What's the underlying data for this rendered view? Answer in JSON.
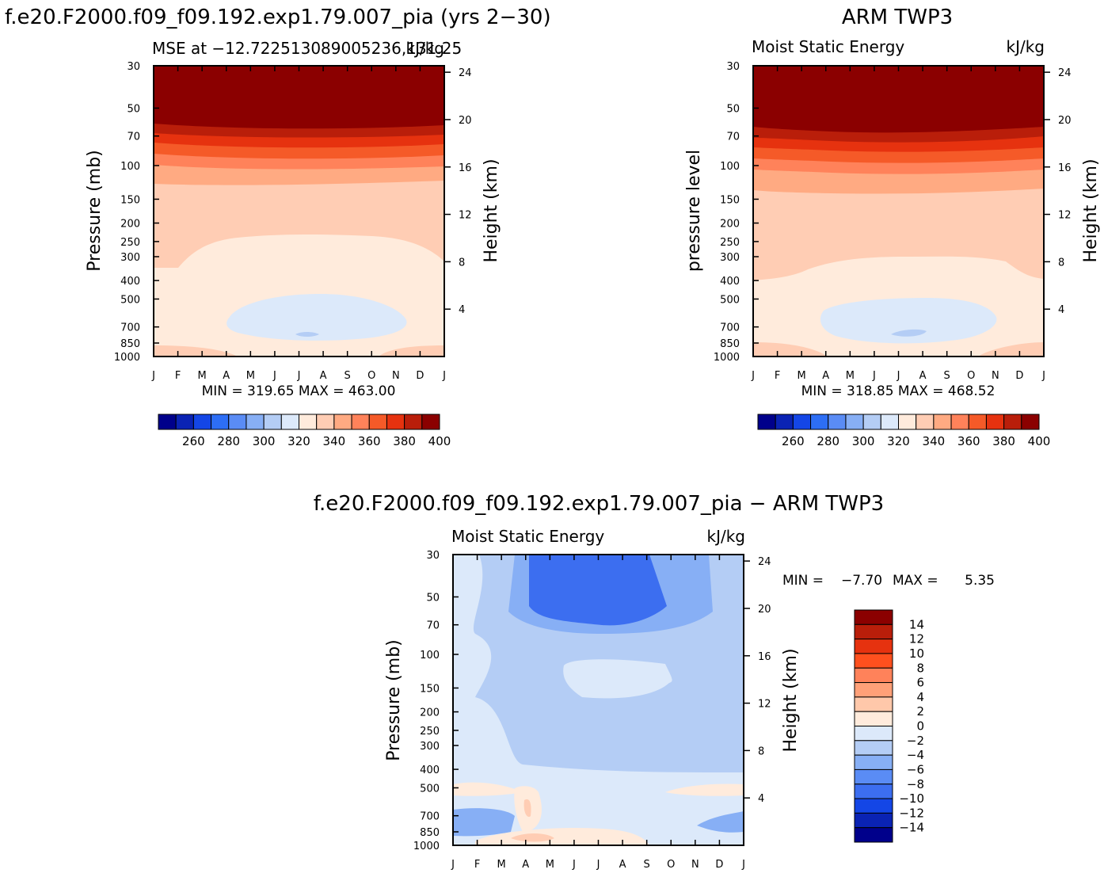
{
  "colors": {
    "mse_bar": [
      "#00008b",
      "#0a23b4",
      "#1446e6",
      "#2d6ef5",
      "#5a8cf5",
      "#87aff5",
      "#b4cdf5",
      "#dce9fa",
      "#ffebdc",
      "#ffcdb4",
      "#ffaa82",
      "#ff825a",
      "#f55a28",
      "#e6320f",
      "#b91e0a",
      "#8b0000"
    ],
    "diff_bar": [
      "#8b0000",
      "#b91e0a",
      "#e6320f",
      "#ff501e",
      "#ff825a",
      "#ffa078",
      "#ffc8aa",
      "#ffebdc",
      "#dce9fa",
      "#b4cdf5",
      "#87aff5",
      "#5a8cf5",
      "#3c6ef0",
      "#1446e6",
      "#0a23b4",
      "#00008b"
    ]
  },
  "chart_data": [
    {
      "id": "model",
      "type": "heatmap",
      "header_left": "f.e20.F2000.f09_f09.192.exp1.79.007_pia (yrs 2−30)",
      "title_left": "MSE at −12.722513089005236,131.25",
      "title_right": "kJ/kg",
      "ylabel": "Pressure (mb)",
      "y2label": "Height (km)",
      "months": [
        "J",
        "F",
        "M",
        "A",
        "M",
        "J",
        "J",
        "A",
        "S",
        "O",
        "N",
        "D",
        "J"
      ],
      "pressure_ticks": [
        "30",
        "50",
        "70",
        "100",
        "150",
        "200",
        "250",
        "300",
        "400",
        "500",
        "700",
        "850",
        "1000"
      ],
      "height_ticks": [
        "24",
        "20",
        "16",
        "12",
        "8",
        "4"
      ],
      "stats": "MIN = 319.65 MAX = 463.00",
      "min": 319.65,
      "max": 463.0,
      "colorbar_labels": [
        "260",
        "280",
        "300",
        "320",
        "340",
        "360",
        "380",
        "400"
      ],
      "levels": [
        250,
        260,
        270,
        280,
        290,
        300,
        310,
        320,
        330,
        340,
        350,
        360,
        370,
        380,
        390,
        400
      ]
    },
    {
      "id": "obs",
      "type": "heatmap",
      "header_right": "ARM TWP3",
      "title_left": "Moist Static Energy",
      "title_right": "kJ/kg",
      "ylabel": "pressure level",
      "y2label": "Height (km)",
      "months": [
        "J",
        "F",
        "M",
        "A",
        "M",
        "J",
        "J",
        "A",
        "S",
        "O",
        "N",
        "D",
        "J"
      ],
      "pressure_ticks": [
        "30",
        "50",
        "70",
        "100",
        "150",
        "200",
        "250",
        "300",
        "400",
        "500",
        "700",
        "850",
        "1000"
      ],
      "height_ticks": [
        "24",
        "20",
        "16",
        "12",
        "8",
        "4"
      ],
      "stats": "MIN = 318.85 MAX = 468.52",
      "min": 318.85,
      "max": 468.52,
      "colorbar_labels": [
        "260",
        "280",
        "300",
        "320",
        "340",
        "360",
        "380",
        "400"
      ],
      "levels": [
        250,
        260,
        270,
        280,
        290,
        300,
        310,
        320,
        330,
        340,
        350,
        360,
        370,
        380,
        390,
        400
      ]
    },
    {
      "id": "diff",
      "type": "heatmap",
      "header": "f.e20.F2000.f09_f09.192.exp1.79.007_pia − ARM TWP3",
      "title_left": "Moist Static Energy",
      "title_right": "kJ/kg",
      "ylabel": "Pressure (mb)",
      "y2label": "Height (km)",
      "months": [
        "J",
        "F",
        "M",
        "A",
        "M",
        "J",
        "J",
        "A",
        "S",
        "O",
        "N",
        "D",
        "J"
      ],
      "pressure_ticks": [
        "30",
        "50",
        "70",
        "100",
        "150",
        "200",
        "250",
        "300",
        "400",
        "500",
        "700",
        "850",
        "1000"
      ],
      "height_ticks": [
        "24",
        "20",
        "16",
        "12",
        "8",
        "4"
      ],
      "stats_min_label": "MIN =",
      "stats_min": "−7.70",
      "stats_max_label": "MAX =",
      "stats_max": "5.35",
      "min": -7.7,
      "max": 5.35,
      "colorbar_labels": [
        "14",
        "12",
        "10",
        "8",
        "6",
        "4",
        "2",
        "0",
        "−2",
        "−4",
        "−6",
        "−8",
        "−10",
        "−12",
        "−14"
      ],
      "levels": [
        14,
        12,
        10,
        8,
        6,
        4,
        2,
        0,
        -2,
        -4,
        -6,
        -8,
        -10,
        -12,
        -14
      ]
    }
  ]
}
